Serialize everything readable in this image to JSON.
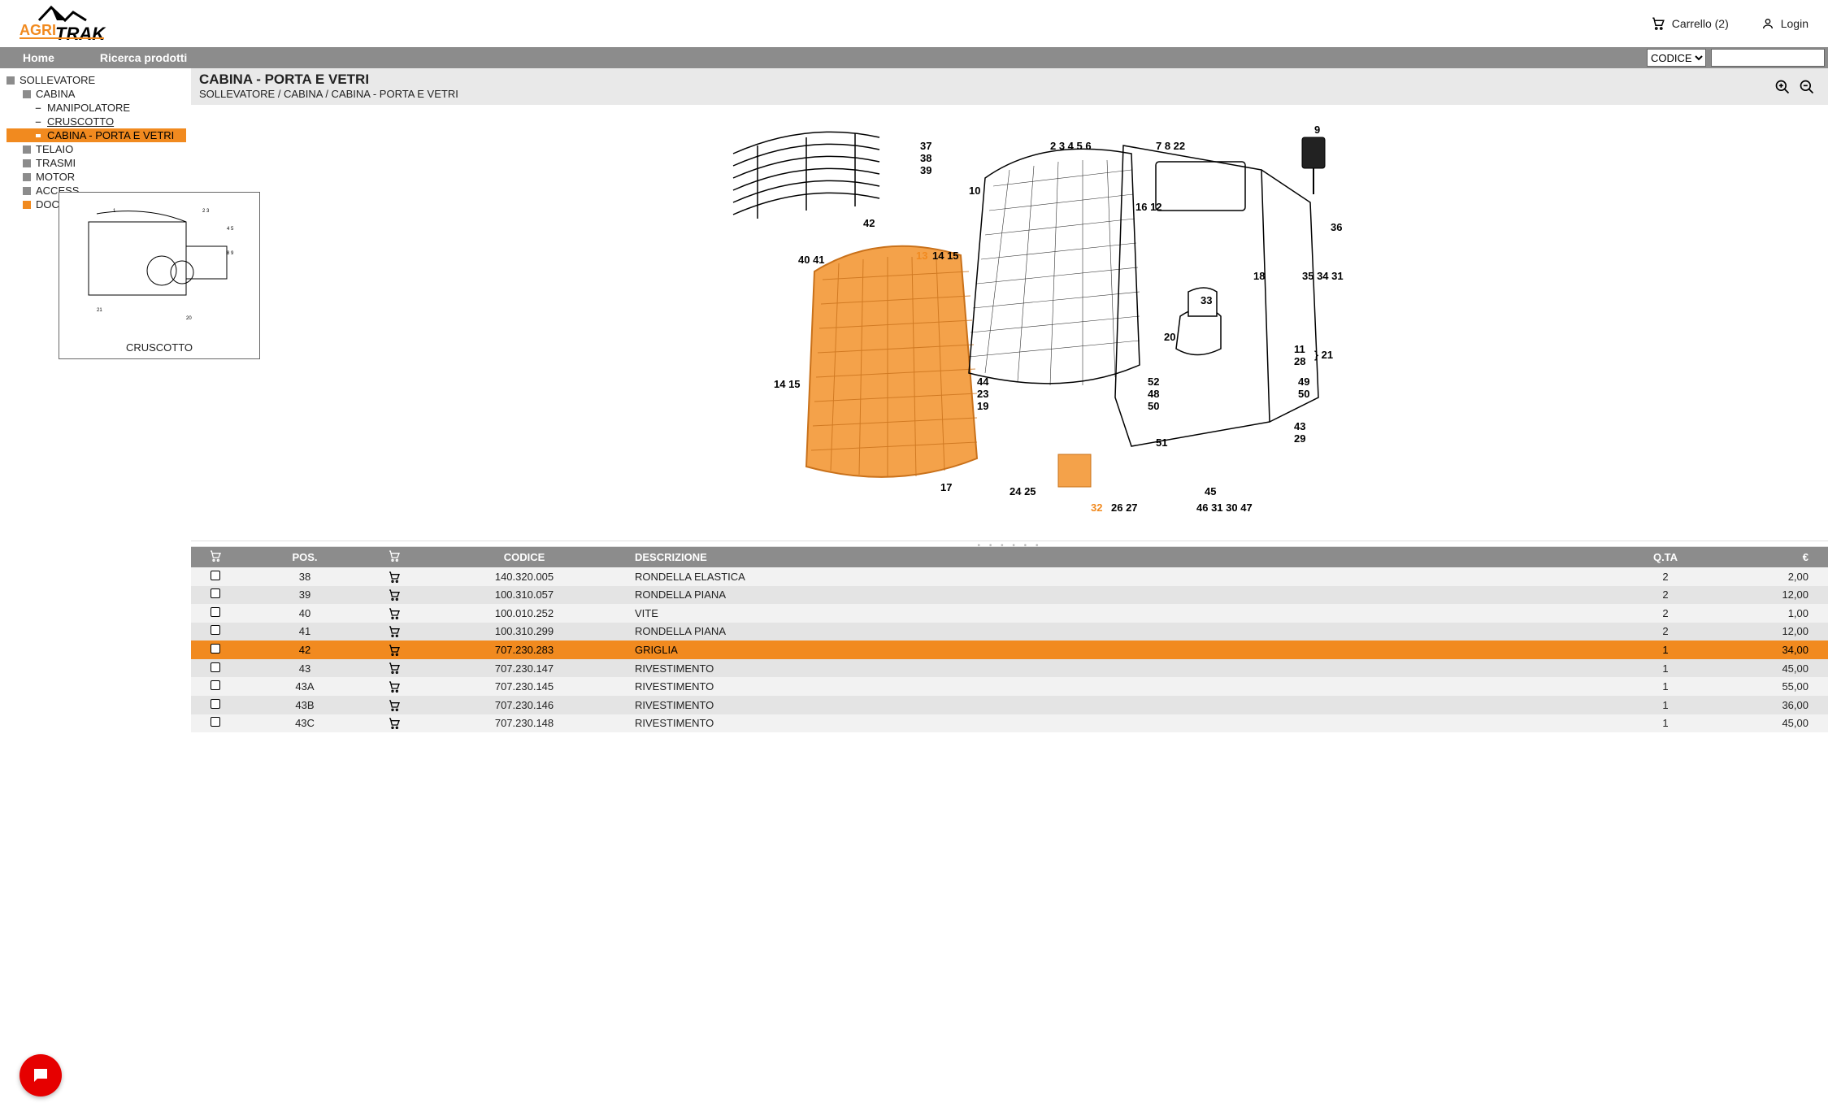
{
  "header": {
    "logo_text_left": "AGRI",
    "logo_text_right": "TRAK",
    "logo_color_left": "#f18a1f",
    "logo_color_right": "#000000",
    "cart_label": "Carrello",
    "cart_count": "2",
    "cart_display": "Carrello (2)",
    "login_label": "Login"
  },
  "nav": {
    "home": "Home",
    "search": "Ricerca prodotti",
    "select_value": "CODICE",
    "search_placeholder": ""
  },
  "sidebar": {
    "items": [
      {
        "label": "SOLLEVATORE",
        "indent": 0,
        "marker": "sq"
      },
      {
        "label": "CABINA",
        "indent": 1,
        "marker": "sq"
      },
      {
        "label": "MANIPOLATORE",
        "indent": 2,
        "marker": "dash"
      },
      {
        "label": "CRUSCOTTO",
        "indent": 2,
        "marker": "dash",
        "underline": true
      },
      {
        "label": "CABINA - PORTA E VETRI",
        "indent": 2,
        "marker": "open",
        "active": true
      },
      {
        "label": "TELAIO",
        "indent": 1,
        "marker": "sq",
        "truncated": "TELAIO"
      },
      {
        "label": "TRASMISSIONE",
        "indent": 1,
        "marker": "sq",
        "truncated": "TRASMI"
      },
      {
        "label": "MOTORE",
        "indent": 1,
        "marker": "sq",
        "truncated": "MOTOR"
      },
      {
        "label": "ACCESSORI",
        "indent": 1,
        "marker": "sq",
        "truncated": "ACCESS"
      },
      {
        "label": "DOCUMENTI",
        "indent": 1,
        "marker": "orange",
        "truncated": "DOCUME"
      }
    ],
    "preview_caption": "CRUSCOTTO"
  },
  "page": {
    "title": "CABINA - PORTA E VETRI",
    "breadcrumb": "SOLLEVATORE / CABINA / CABINA - PORTA E VETRI"
  },
  "diagram": {
    "highlight_color": "#f18a1f",
    "callouts": [
      "37",
      "38",
      "39",
      "42",
      "40 41",
      "13",
      "14",
      "15",
      "10",
      "2",
      "3",
      "4",
      "5",
      "6",
      "7",
      "8",
      "22",
      "9",
      "16",
      "12",
      "36",
      "35",
      "34",
      "31",
      "18",
      "33",
      "11",
      "28",
      "21",
      "20",
      "49",
      "50",
      "52",
      "48",
      "43",
      "29",
      "44",
      "23",
      "19",
      "14",
      "15",
      "17",
      "24",
      "25",
      "32",
      "26",
      "27",
      "51",
      "45",
      "46",
      "31",
      "30",
      "47"
    ]
  },
  "table": {
    "headers": {
      "pos": "POS.",
      "code": "CODICE",
      "desc": "DESCRIZIONE",
      "qty": "Q.TA",
      "price": "€"
    },
    "rows": [
      {
        "pos": "38",
        "code": "140.320.005",
        "desc": "RONDELLA ELASTICA",
        "qty": "2",
        "price": "2,00"
      },
      {
        "pos": "39",
        "code": "100.310.057",
        "desc": "RONDELLA PIANA",
        "qty": "2",
        "price": "12,00"
      },
      {
        "pos": "40",
        "code": "100.010.252",
        "desc": "VITE",
        "qty": "2",
        "price": "1,00"
      },
      {
        "pos": "41",
        "code": "100.310.299",
        "desc": "RONDELLA PIANA",
        "qty": "2",
        "price": "12,00"
      },
      {
        "pos": "42",
        "code": "707.230.283",
        "desc": "GRIGLIA",
        "qty": "1",
        "price": "34,00",
        "selected": true
      },
      {
        "pos": "43",
        "code": "707.230.147",
        "desc": "RIVESTIMENTO",
        "qty": "1",
        "price": "45,00"
      },
      {
        "pos": "43A",
        "code": "707.230.145",
        "desc": "RIVESTIMENTO",
        "qty": "1",
        "price": "55,00"
      },
      {
        "pos": "43B",
        "code": "707.230.146",
        "desc": "RIVESTIMENTO",
        "qty": "1",
        "price": "36,00"
      },
      {
        "pos": "43C",
        "code": "707.230.148",
        "desc": "RIVESTIMENTO",
        "qty": "1",
        "price": "45,00"
      }
    ]
  },
  "colors": {
    "accent": "#f18a1f",
    "nav_bg": "#8c8c8c",
    "row_odd": "#f2f2f2",
    "row_even": "#e4e4e4",
    "chat_red": "#e60000"
  }
}
